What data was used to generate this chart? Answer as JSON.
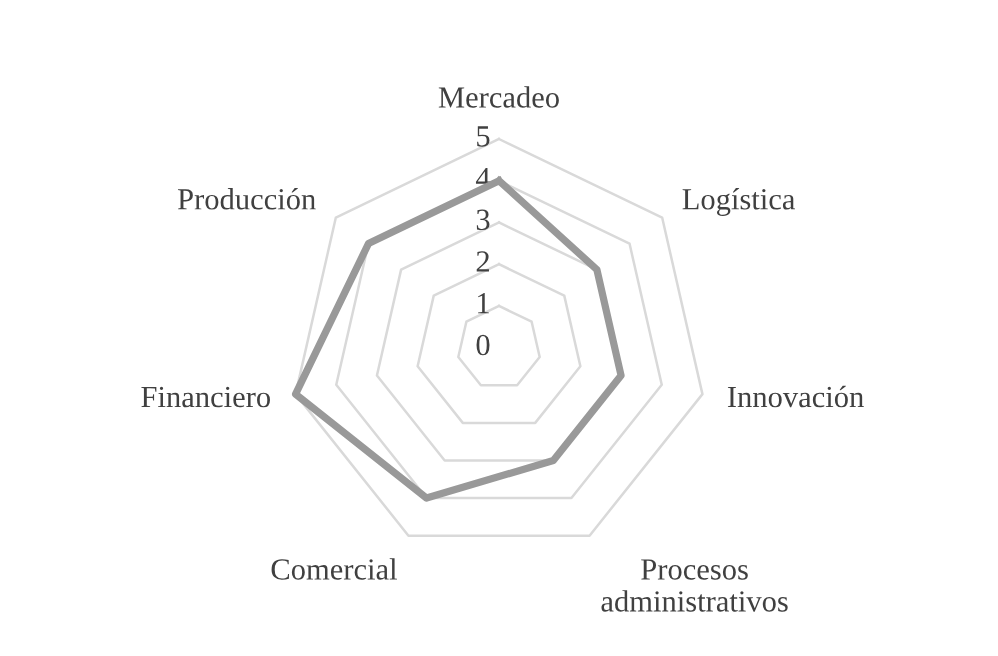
{
  "chart_data": {
    "type": "radar",
    "categories": [
      "Mercadeo",
      "Logística",
      "Innovación",
      "Procesos administrativos",
      "Comercial",
      "Financiero",
      "Producción"
    ],
    "series": [
      {
        "color": "#999999",
        "values": [
          4,
          3,
          3,
          3,
          4,
          5,
          4
        ]
      }
    ],
    "ylim": [
      0,
      5
    ],
    "yticks": [
      0,
      1,
      2,
      3,
      4,
      5
    ],
    "grid": true,
    "marker": "none",
    "line_style": "solid"
  }
}
